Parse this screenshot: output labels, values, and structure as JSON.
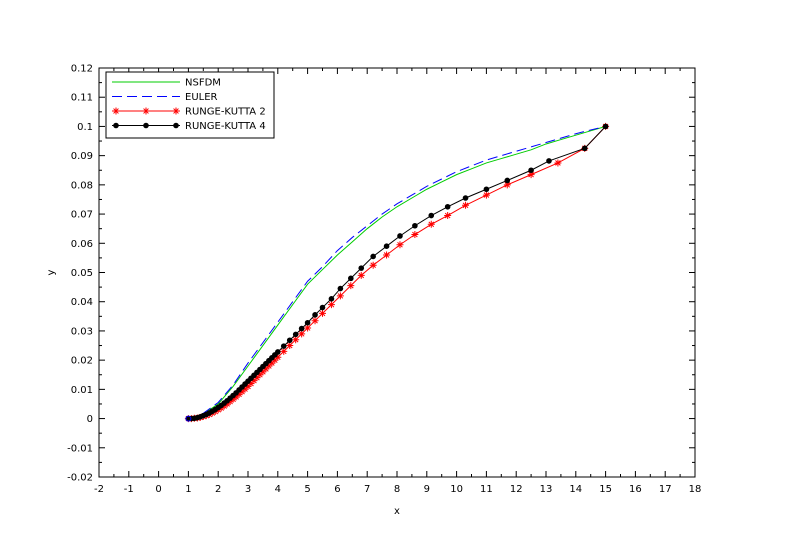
{
  "chart_data": {
    "type": "line",
    "xlabel": "x",
    "ylabel": "y",
    "xlim": [
      -2,
      18
    ],
    "ylim": [
      -0.02,
      0.12
    ],
    "x_ticks": [
      -2,
      -1,
      0,
      1,
      2,
      3,
      4,
      5,
      6,
      7,
      8,
      9,
      10,
      11,
      12,
      13,
      14,
      15,
      16,
      17,
      18
    ],
    "x_tick_labels": [
      "-2",
      "-1",
      "0",
      "1",
      "2",
      "3",
      "4",
      "5",
      "6",
      "7",
      "8",
      "9",
      "10",
      "11",
      "12",
      "13",
      "14",
      "15",
      "16",
      "17",
      "18"
    ],
    "y_ticks": [
      -0.02,
      -0.01,
      0,
      0.01,
      0.02,
      0.03,
      0.04,
      0.05,
      0.06,
      0.07,
      0.08,
      0.09,
      0.1,
      0.11,
      0.12
    ],
    "y_tick_labels": [
      "-0.02",
      "-0.01",
      "0",
      "0.01",
      "0.02",
      "0.03",
      "0.04",
      "0.05",
      "0.06",
      "0.07",
      "0.08",
      "0.09",
      "0.1",
      "0.11",
      "0.12"
    ],
    "legend_position": "top-left",
    "series": [
      {
        "name": "NSFDM",
        "color": "#00cc00",
        "line_style": "solid",
        "marker": "none",
        "points": [
          [
            1,
            0
          ],
          [
            1.2,
            0.0002
          ],
          [
            1.5,
            0.0015
          ],
          [
            2,
            0.005
          ],
          [
            2.5,
            0.011
          ],
          [
            3,
            0.018
          ],
          [
            3.5,
            0.025
          ],
          [
            4,
            0.032
          ],
          [
            4.5,
            0.039
          ],
          [
            5,
            0.046
          ],
          [
            5.5,
            0.051
          ],
          [
            6,
            0.056
          ],
          [
            6.5,
            0.0605
          ],
          [
            7,
            0.065
          ],
          [
            7.5,
            0.069
          ],
          [
            8,
            0.0725
          ],
          [
            8.5,
            0.0755
          ],
          [
            9,
            0.0785
          ],
          [
            9.5,
            0.081
          ],
          [
            10,
            0.0835
          ],
          [
            10.5,
            0.0855
          ],
          [
            11,
            0.0875
          ],
          [
            11.5,
            0.089
          ],
          [
            12,
            0.0905
          ],
          [
            12.5,
            0.092
          ],
          [
            13,
            0.094
          ],
          [
            13.5,
            0.0955
          ],
          [
            14,
            0.097
          ],
          [
            14.5,
            0.0985
          ],
          [
            15,
            0.1
          ]
        ]
      },
      {
        "name": "EULER",
        "color": "#0000ff",
        "line_style": "dashed",
        "marker": "none",
        "points": [
          [
            1,
            0
          ],
          [
            1.2,
            0.0003
          ],
          [
            1.5,
            0.0018
          ],
          [
            2,
            0.0055
          ],
          [
            2.5,
            0.0115
          ],
          [
            3,
            0.019
          ],
          [
            3.5,
            0.026
          ],
          [
            4,
            0.033
          ],
          [
            4.5,
            0.04
          ],
          [
            5,
            0.047
          ],
          [
            5.5,
            0.052
          ],
          [
            6,
            0.0575
          ],
          [
            6.5,
            0.062
          ],
          [
            7,
            0.066
          ],
          [
            7.5,
            0.07
          ],
          [
            8,
            0.0735
          ],
          [
            8.5,
            0.0765
          ],
          [
            9,
            0.0795
          ],
          [
            9.5,
            0.082
          ],
          [
            10,
            0.0845
          ],
          [
            10.5,
            0.0865
          ],
          [
            11,
            0.0885
          ],
          [
            11.5,
            0.09
          ],
          [
            12,
            0.0915
          ],
          [
            12.5,
            0.093
          ],
          [
            13,
            0.0945
          ],
          [
            13.5,
            0.096
          ],
          [
            14,
            0.0975
          ],
          [
            14.5,
            0.0988
          ],
          [
            15,
            0.1
          ]
        ]
      },
      {
        "name": "RUNGE-KUTTA 2",
        "color": "#ff0000",
        "line_style": "solid",
        "marker": "asterisk",
        "points": [
          [
            1,
            0
          ],
          [
            1.1,
            0
          ],
          [
            1.2,
            0.0001
          ],
          [
            1.3,
            0.0002
          ],
          [
            1.4,
            0.0004
          ],
          [
            1.5,
            0.0007
          ],
          [
            1.6,
            0.001
          ],
          [
            1.7,
            0.0014
          ],
          [
            1.8,
            0.0019
          ],
          [
            1.9,
            0.0024
          ],
          [
            2,
            0.003
          ],
          [
            2.1,
            0.0036
          ],
          [
            2.2,
            0.0043
          ],
          [
            2.3,
            0.005
          ],
          [
            2.4,
            0.0058
          ],
          [
            2.5,
            0.0066
          ],
          [
            2.6,
            0.0074
          ],
          [
            2.7,
            0.0083
          ],
          [
            2.8,
            0.0092
          ],
          [
            2.9,
            0.0101
          ],
          [
            3,
            0.011
          ],
          [
            3.1,
            0.012
          ],
          [
            3.2,
            0.013
          ],
          [
            3.3,
            0.014
          ],
          [
            3.4,
            0.015
          ],
          [
            3.5,
            0.016
          ],
          [
            3.6,
            0.017
          ],
          [
            3.7,
            0.018
          ],
          [
            3.8,
            0.019
          ],
          [
            3.9,
            0.02
          ],
          [
            4,
            0.021
          ],
          [
            4.2,
            0.023
          ],
          [
            4.4,
            0.025
          ],
          [
            4.6,
            0.027
          ],
          [
            4.8,
            0.029
          ],
          [
            5,
            0.031
          ],
          [
            5.25,
            0.0335
          ],
          [
            5.5,
            0.036
          ],
          [
            5.8,
            0.039
          ],
          [
            6.1,
            0.042
          ],
          [
            6.45,
            0.0455
          ],
          [
            6.8,
            0.049
          ],
          [
            7.2,
            0.0525
          ],
          [
            7.65,
            0.056
          ],
          [
            8.1,
            0.0595
          ],
          [
            8.6,
            0.063
          ],
          [
            9.15,
            0.0665
          ],
          [
            9.7,
            0.0695
          ],
          [
            10.3,
            0.073
          ],
          [
            11,
            0.0765
          ],
          [
            11.7,
            0.08
          ],
          [
            12.5,
            0.0835
          ],
          [
            13.4,
            0.0875
          ],
          [
            14.3,
            0.0925
          ],
          [
            15,
            0.1
          ]
        ]
      },
      {
        "name": "RUNGE-KUTTA 4",
        "color": "#000000",
        "line_style": "solid",
        "marker": "dot",
        "points": [
          [
            1,
            0
          ],
          [
            1.1,
            0
          ],
          [
            1.2,
            0.0001
          ],
          [
            1.3,
            0.0003
          ],
          [
            1.4,
            0.0006
          ],
          [
            1.5,
            0.001
          ],
          [
            1.6,
            0.0014
          ],
          [
            1.7,
            0.0019
          ],
          [
            1.8,
            0.0025
          ],
          [
            1.9,
            0.0031
          ],
          [
            2,
            0.0038
          ],
          [
            2.1,
            0.0045
          ],
          [
            2.2,
            0.0053
          ],
          [
            2.3,
            0.0061
          ],
          [
            2.4,
            0.007
          ],
          [
            2.5,
            0.0079
          ],
          [
            2.6,
            0.0088
          ],
          [
            2.7,
            0.0098
          ],
          [
            2.8,
            0.0108
          ],
          [
            2.9,
            0.0118
          ],
          [
            3,
            0.0128
          ],
          [
            3.1,
            0.0138
          ],
          [
            3.2,
            0.0148
          ],
          [
            3.3,
            0.0158
          ],
          [
            3.4,
            0.0168
          ],
          [
            3.5,
            0.0178
          ],
          [
            3.6,
            0.0188
          ],
          [
            3.7,
            0.0198
          ],
          [
            3.8,
            0.0208
          ],
          [
            3.9,
            0.0218
          ],
          [
            4,
            0.0228
          ],
          [
            4.2,
            0.0248
          ],
          [
            4.4,
            0.0268
          ],
          [
            4.6,
            0.0288
          ],
          [
            4.8,
            0.0308
          ],
          [
            5,
            0.0328
          ],
          [
            5.25,
            0.0355
          ],
          [
            5.5,
            0.038
          ],
          [
            5.8,
            0.041
          ],
          [
            6.1,
            0.0445
          ],
          [
            6.45,
            0.048
          ],
          [
            6.8,
            0.0515
          ],
          [
            7.2,
            0.0555
          ],
          [
            7.65,
            0.059
          ],
          [
            8.1,
            0.0625
          ],
          [
            8.6,
            0.066
          ],
          [
            9.15,
            0.0695
          ],
          [
            9.7,
            0.0725
          ],
          [
            10.3,
            0.0755
          ],
          [
            11,
            0.0785
          ],
          [
            11.7,
            0.0815
          ],
          [
            12.5,
            0.085
          ],
          [
            13.1,
            0.0882
          ],
          [
            14.3,
            0.0925
          ],
          [
            15,
            0.1
          ]
        ]
      }
    ]
  }
}
